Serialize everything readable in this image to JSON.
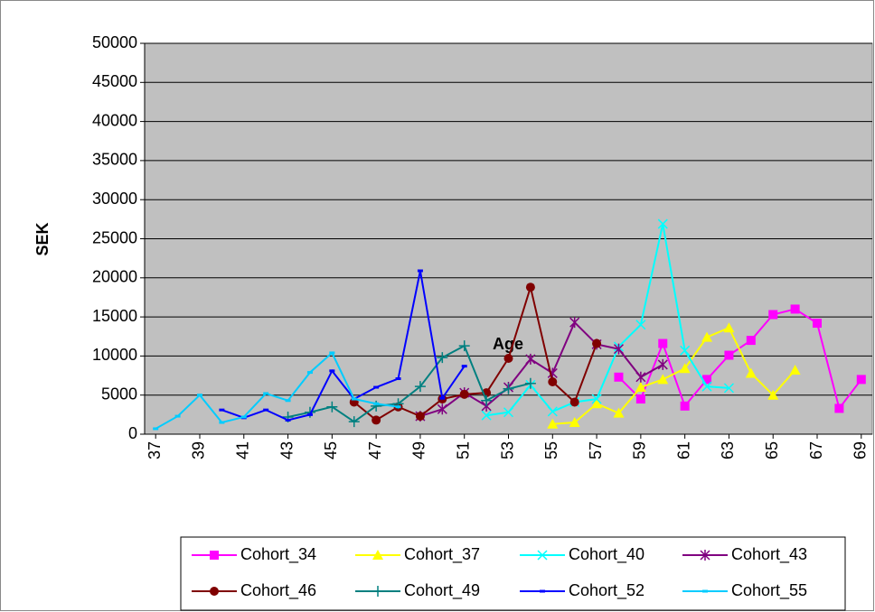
{
  "chart_data": {
    "type": "line",
    "y_label": "SEK",
    "x_label": "Age",
    "x": [
      37,
      38,
      39,
      40,
      41,
      42,
      43,
      44,
      45,
      46,
      47,
      48,
      49,
      50,
      51,
      52,
      53,
      54,
      55,
      56,
      57,
      58,
      59,
      60,
      61,
      62,
      63,
      64,
      65,
      66,
      67,
      68,
      69
    ],
    "xlim": [
      36.5,
      69.5
    ],
    "xticks": [
      37,
      39,
      41,
      43,
      45,
      47,
      49,
      51,
      53,
      55,
      57,
      59,
      61,
      63,
      65,
      67,
      69
    ],
    "ylim": [
      0,
      50000
    ],
    "yticks": [
      0,
      5000,
      10000,
      15000,
      20000,
      25000,
      30000,
      35000,
      40000,
      45000,
      50000
    ],
    "grid": true,
    "series": [
      {
        "name": "Cohort_34",
        "color": "#ff00ff",
        "marker": "square",
        "values": [
          null,
          null,
          null,
          null,
          null,
          null,
          null,
          null,
          null,
          null,
          null,
          null,
          null,
          null,
          null,
          null,
          null,
          null,
          null,
          null,
          null,
          7300,
          4500,
          11600,
          3600,
          7000,
          10100,
          12000,
          15300,
          16000,
          14200,
          3300,
          7000
        ]
      },
      {
        "name": "Cohort_37",
        "color": "#ffff00",
        "marker": "triangle",
        "values": [
          null,
          null,
          null,
          null,
          null,
          null,
          null,
          null,
          null,
          null,
          null,
          null,
          null,
          null,
          null,
          null,
          null,
          null,
          1300,
          1500,
          3900,
          2700,
          6000,
          7000,
          8400,
          12400,
          13600,
          7800,
          5000,
          8200,
          null,
          null,
          null
        ]
      },
      {
        "name": "Cohort_40",
        "color": "#00ffff",
        "marker": "x",
        "values": [
          null,
          null,
          null,
          null,
          null,
          null,
          null,
          null,
          null,
          null,
          null,
          null,
          null,
          null,
          null,
          2400,
          2800,
          6300,
          2900,
          4100,
          4500,
          11200,
          14000,
          26900,
          10700,
          6100,
          5900,
          null,
          null,
          null,
          null,
          null,
          null
        ]
      },
      {
        "name": "Cohort_43",
        "color": "#800080",
        "marker": "star",
        "values": [
          null,
          null,
          null,
          null,
          null,
          null,
          null,
          null,
          null,
          null,
          null,
          null,
          2300,
          3200,
          5300,
          3600,
          6000,
          9600,
          7800,
          14300,
          11500,
          10900,
          7300,
          8900,
          null,
          null,
          null,
          null,
          null,
          null,
          null,
          null,
          null
        ]
      },
      {
        "name": "Cohort_46",
        "color": "#800000",
        "marker": "circle",
        "values": [
          null,
          null,
          null,
          null,
          null,
          null,
          null,
          null,
          null,
          4100,
          1800,
          3500,
          2300,
          4500,
          5100,
          5300,
          9700,
          18800,
          6700,
          4100,
          11600,
          null,
          null,
          null,
          null,
          null,
          null,
          null,
          null,
          null,
          null,
          null,
          null
        ]
      },
      {
        "name": "Cohort_49",
        "color": "#008080",
        "marker": "plus",
        "values": [
          null,
          null,
          null,
          null,
          null,
          null,
          2200,
          2800,
          3500,
          1600,
          3600,
          3900,
          6100,
          9800,
          11300,
          4300,
          5800,
          6500,
          null,
          null,
          null,
          null,
          null,
          null,
          null,
          null,
          null,
          null,
          null,
          null,
          null,
          null,
          null
        ]
      },
      {
        "name": "Cohort_52",
        "color": "#0000ff",
        "marker": "dash",
        "values": [
          null,
          null,
          null,
          3100,
          2100,
          3100,
          1800,
          2500,
          8100,
          4500,
          6000,
          7100,
          20900,
          4600,
          8700,
          null,
          null,
          null,
          null,
          null,
          null,
          null,
          null,
          null,
          null,
          null,
          null,
          null,
          null,
          null,
          null,
          null,
          null
        ]
      },
      {
        "name": "Cohort_55",
        "color": "#00ccff",
        "marker": "dash",
        "values": [
          700,
          2300,
          5000,
          1500,
          2200,
          5200,
          4300,
          7900,
          10400,
          4500,
          3900,
          3500,
          null,
          null,
          null,
          null,
          null,
          null,
          null,
          null,
          null,
          null,
          null,
          null,
          null,
          null,
          null,
          null,
          null,
          null,
          null,
          null,
          null
        ]
      }
    ]
  }
}
